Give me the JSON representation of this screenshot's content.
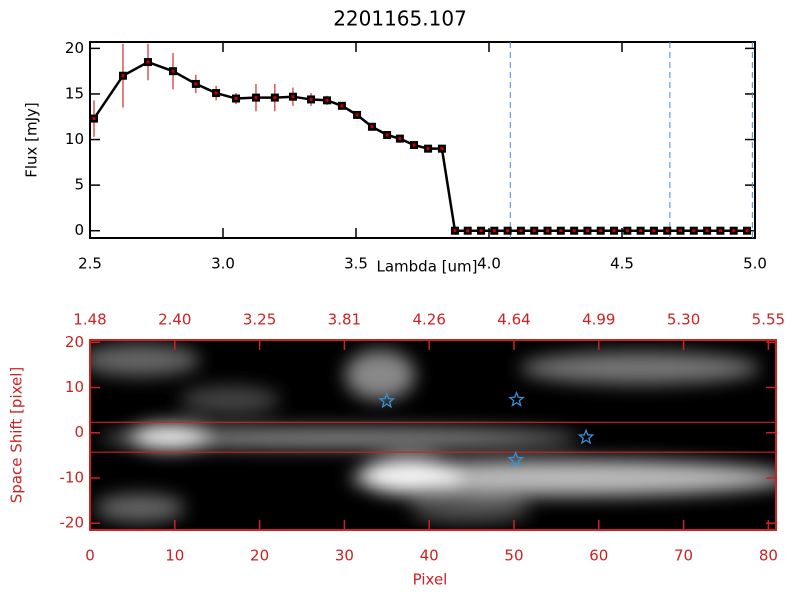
{
  "chart_data": [
    {
      "type": "line",
      "title": "2201165.107",
      "x_label": "Lambda [um]",
      "y_label": "Flux [mJy]",
      "x": [
        2.515,
        2.624,
        2.718,
        2.812,
        2.898,
        2.974,
        3.049,
        3.124,
        3.195,
        3.263,
        3.331,
        3.391,
        3.447,
        3.504,
        3.56,
        3.617,
        3.665,
        3.718,
        3.771,
        3.823,
        3.872,
        3.92,
        3.97,
        4.02,
        4.07,
        4.12,
        4.17,
        4.22,
        4.27,
        4.32,
        4.37,
        4.42,
        4.47,
        4.52,
        4.57,
        4.62,
        4.67,
        4.72,
        4.77,
        4.82,
        4.87,
        4.92,
        4.97
      ],
      "values": [
        12.3,
        17.0,
        18.5,
        17.5,
        16.1,
        15.1,
        14.5,
        14.6,
        14.6,
        14.7,
        14.4,
        14.3,
        13.7,
        12.7,
        11.4,
        10.5,
        10.1,
        9.4,
        9.0,
        9.0,
        0,
        0,
        0,
        0,
        0,
        0,
        0,
        0,
        0,
        0,
        0,
        0,
        0,
        0,
        0,
        0,
        0,
        0,
        0,
        0,
        0,
        0,
        0
      ],
      "errors": [
        2.0,
        3.5,
        2.0,
        2.0,
        1.0,
        0.8,
        0.6,
        1.5,
        1.5,
        1.0,
        0.7,
        0.5,
        0.4,
        0.4,
        0.4,
        0.3,
        0.3,
        0.3,
        0.3,
        0.3,
        0,
        0,
        0,
        0,
        0,
        0,
        0,
        0,
        0,
        0,
        0,
        0,
        0,
        0,
        0,
        0,
        0,
        0,
        0,
        0,
        0,
        0,
        0
      ],
      "color": "#000000",
      "error_color": "#cc0000",
      "vlines": [
        4.08,
        4.68,
        4.99
      ],
      "vline_color": "#3b8fd6",
      "xlim": [
        2.5,
        5.0
      ],
      "ylim": [
        -0.8,
        20.7
      ],
      "xticks": [
        2.5,
        {
          "value": 3,
          "label": "3.0"
        },
        3.5,
        {
          "value": 4,
          "label": "4.0"
        },
        4.5,
        {
          "value": 5,
          "label": "5.0"
        }
      ],
      "yticks": [
        0,
        5,
        10,
        15,
        20
      ]
    },
    {
      "type": "image",
      "x_label": "Pixel",
      "y_label": "Space Shift [pixel]",
      "color": "#cc2222",
      "xlim": [
        0,
        80.9
      ],
      "ylim": [
        -21.5,
        20.5
      ],
      "xticks": [
        0,
        10,
        20,
        30,
        40,
        50,
        60,
        70,
        80
      ],
      "yticks": [
        -20,
        -10,
        0,
        10,
        20
      ],
      "top_ticks": [
        {
          "value": 0,
          "label": "1.48"
        },
        {
          "value": 10,
          "label": "2.40"
        },
        {
          "value": 20,
          "label": "3.25"
        },
        {
          "value": 30,
          "label": "3.81"
        },
        {
          "value": 40,
          "label": "4.26"
        },
        {
          "value": 50,
          "label": "4.64"
        },
        {
          "value": 60,
          "label": "4.99"
        },
        {
          "value": 70,
          "label": "5.30"
        },
        {
          "value": 80,
          "label": "5.55"
        }
      ],
      "aperture": [
        2.3,
        -4.3
      ],
      "markers": {
        "x": [
          35,
          50.3,
          50.2,
          58.5
        ],
        "y": [
          7,
          7.3,
          -6,
          -1
        ]
      },
      "marker_color": "#3b8fd6"
    }
  ]
}
